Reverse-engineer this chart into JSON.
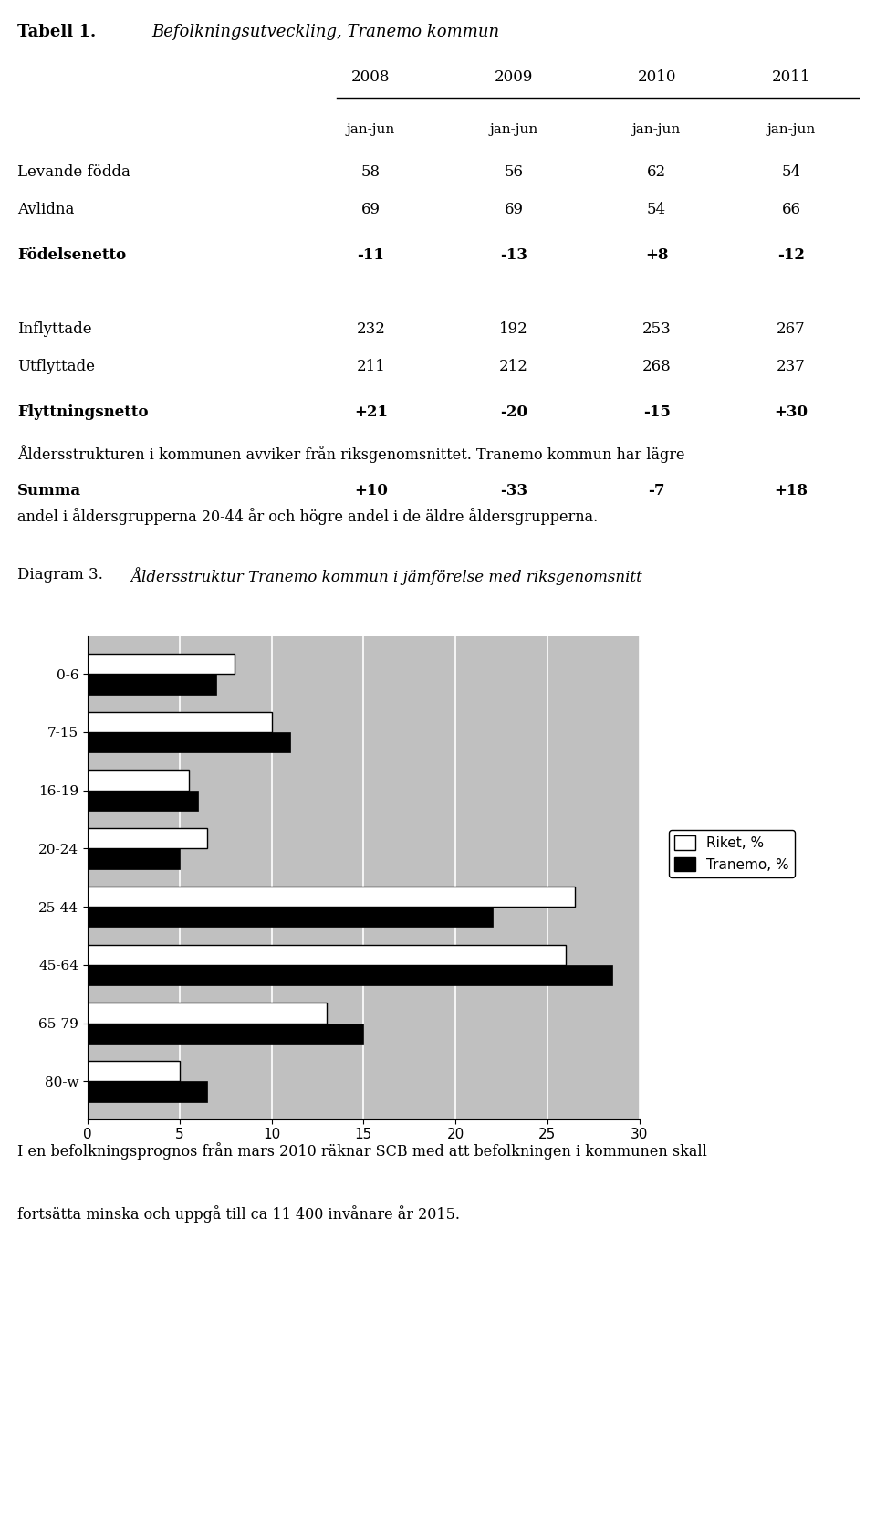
{
  "title_table": "Tabell 1.",
  "title_table_italic": "Befolkningsutveckling, Tranemo kommun",
  "years": [
    "2008",
    "2009",
    "2010",
    "2011"
  ],
  "subheader": "jan-jun",
  "rows": [
    {
      "label": "Levande födda",
      "values": [
        "58",
        "56",
        "62",
        "54"
      ],
      "bold": false
    },
    {
      "label": "Avlidna",
      "values": [
        "69",
        "69",
        "54",
        "66"
      ],
      "bold": false
    },
    {
      "label": "Födelsenetto",
      "values": [
        "-11",
        "-13",
        "+8",
        "-12"
      ],
      "bold": true
    },
    {
      "label": "",
      "values": [
        "",
        "",
        "",
        ""
      ],
      "bold": false
    },
    {
      "label": "Inflyttade",
      "values": [
        "232",
        "192",
        "253",
        "267"
      ],
      "bold": false
    },
    {
      "label": "Utflyttade",
      "values": [
        "211",
        "212",
        "268",
        "237"
      ],
      "bold": false
    },
    {
      "label": "Flyttningsnetto",
      "values": [
        "+21",
        "-20",
        "-15",
        "+30"
      ],
      "bold": true
    },
    {
      "label": "",
      "values": [
        "",
        "",
        "",
        ""
      ],
      "bold": false
    },
    {
      "label": "Summa",
      "values": [
        "+10",
        "-33",
        "-7",
        "+18"
      ],
      "bold": true
    }
  ],
  "paragraph1_line1": "Åldersstrukturen i kommunen avviker från riksgenomsnittet. Tranemo kommun har lägre",
  "paragraph1_line2": "andel i åldersgrupperna 20-44 år och högre andel i de äldre åldersgrupperna.",
  "diagram_label": "Diagram 3.",
  "diagram_title": "Åldersstruktur Tranemo kommun i jämförelse med riksgenomsnitt",
  "age_groups": [
    "80-w",
    "65-79",
    "45-64",
    "25-44",
    "20-24",
    "16-19",
    "7-15",
    "0-6"
  ],
  "riket_values": [
    5.0,
    13.0,
    26.0,
    26.5,
    6.5,
    5.5,
    10.0,
    8.0
  ],
  "tranemo_values": [
    6.5,
    15.0,
    28.5,
    22.0,
    5.0,
    6.0,
    11.0,
    7.0
  ],
  "xlim": [
    0,
    30
  ],
  "xticks": [
    0,
    5,
    10,
    15,
    20,
    25,
    30
  ],
  "legend_riket": "Riket, %",
  "legend_tranemo": "Tranemo, %",
  "paragraph2_line1": "I en befolkningsprognos från mars 2010 räknar SCB med att befolkningen i kommunen skall",
  "paragraph2_line2": "fortsätta minska och uppgå till ca 11 400 invånare år 2015.",
  "bg_color": "#ffffff",
  "chart_bg_color": "#c0c0c0",
  "bar_color_riket": "#ffffff",
  "bar_color_tranemo": "#000000",
  "bar_edge_color": "#000000",
  "grid_color": "#ffffff"
}
